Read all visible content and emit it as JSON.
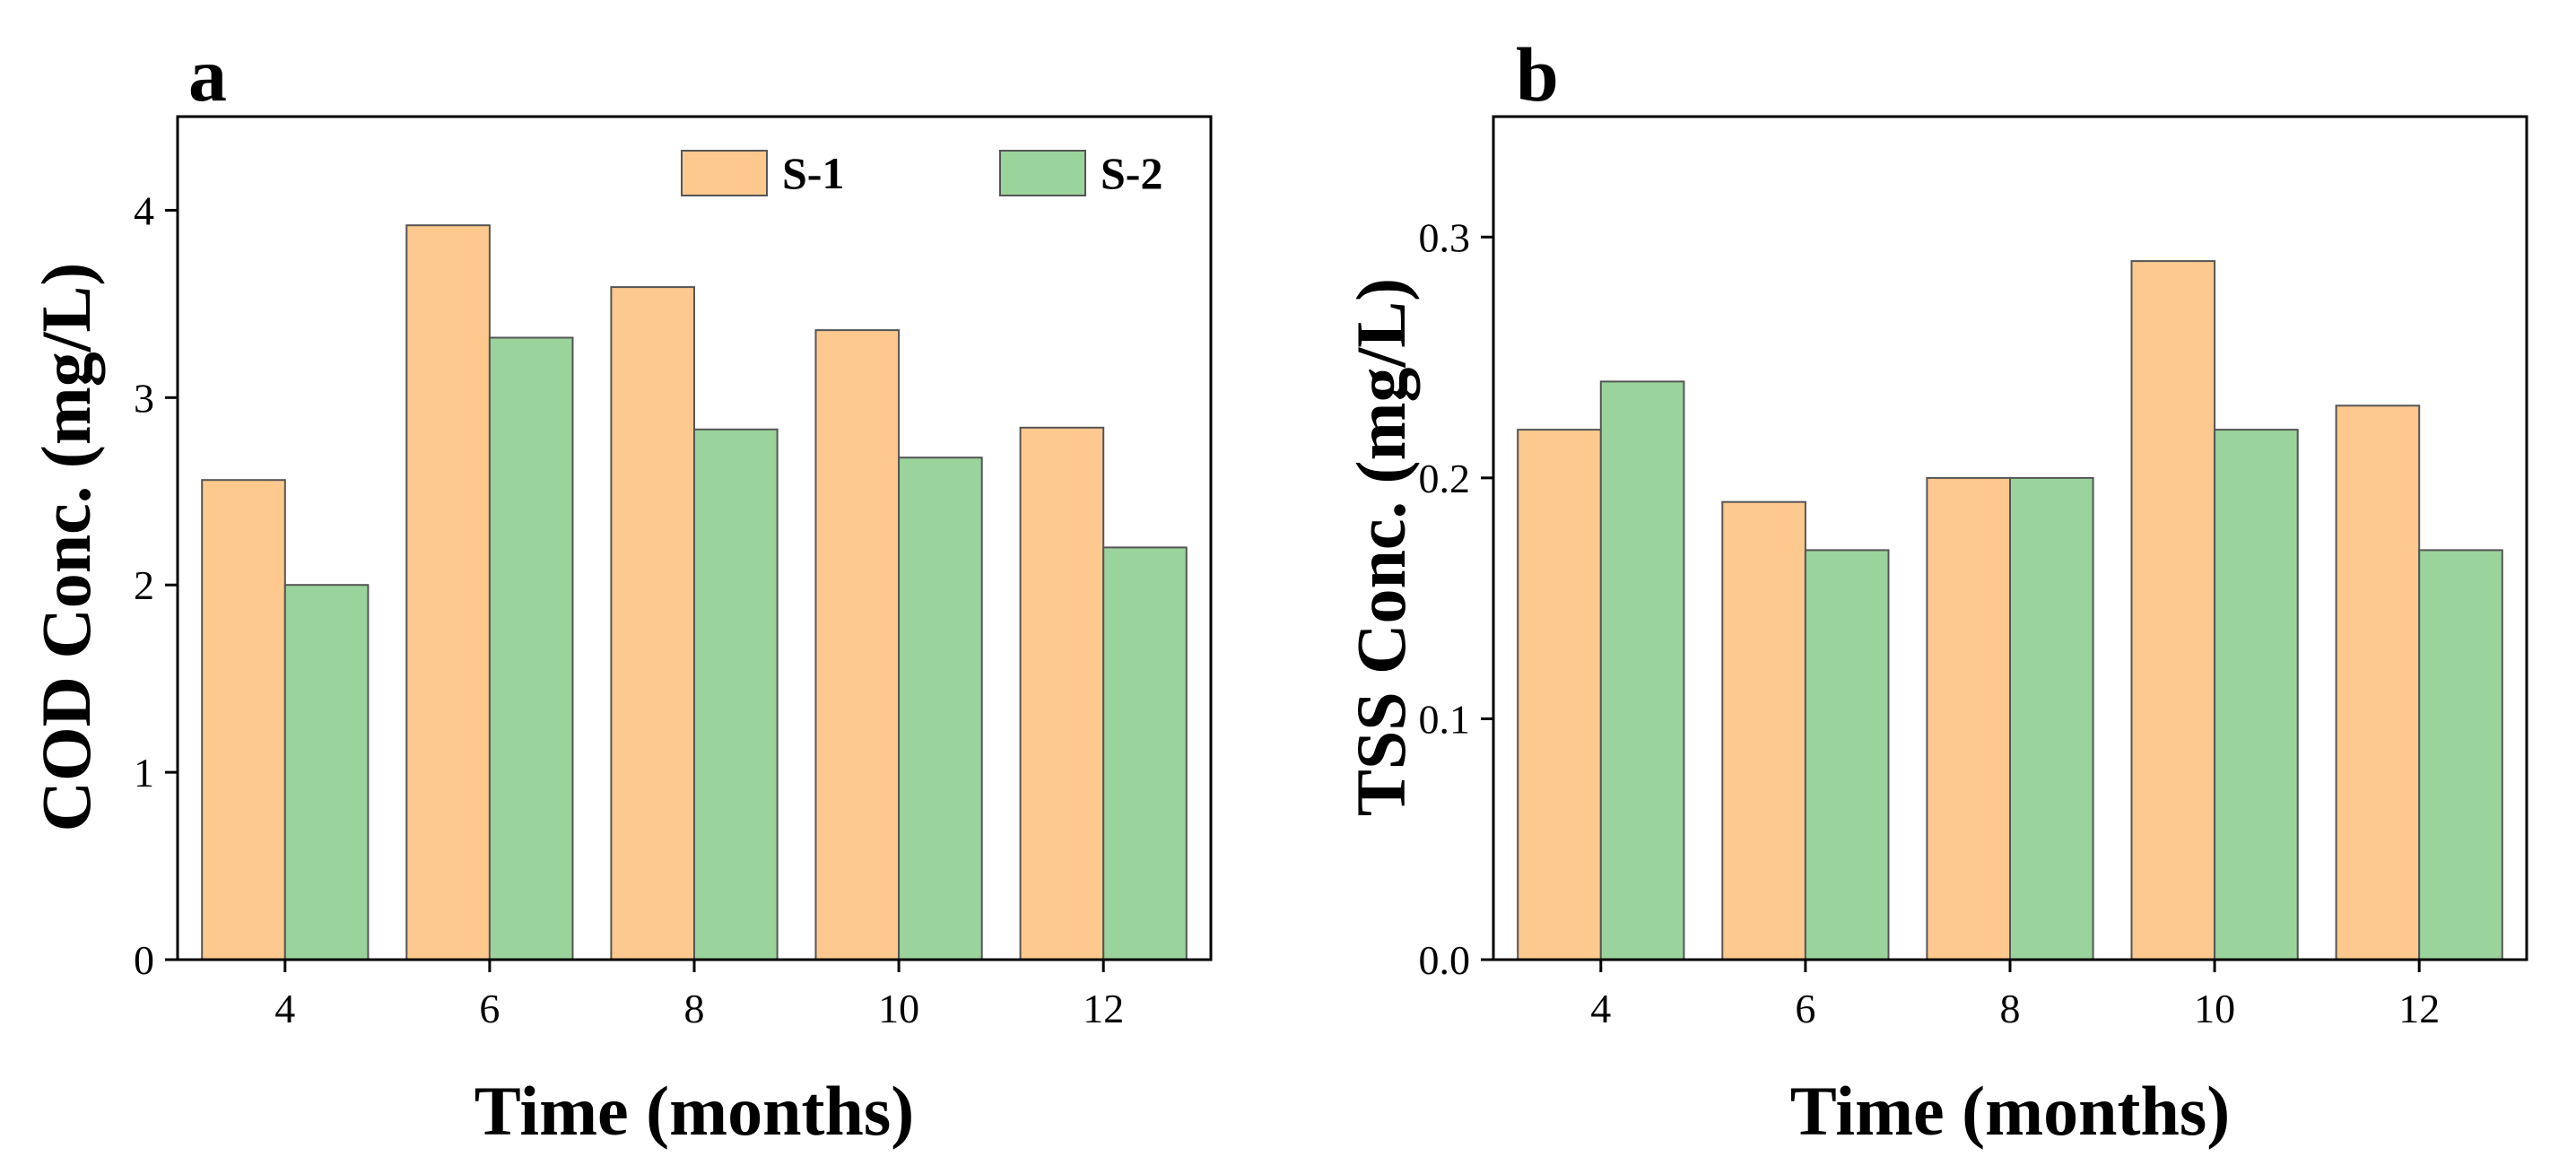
{
  "chart_data": [
    {
      "type": "bar",
      "panel_label": "a",
      "xlabel": "Time (months)",
      "ylabel": "COD Conc. (mg/L)",
      "categories": [
        "4",
        "6",
        "8",
        "10",
        "12"
      ],
      "series": [
        {
          "name": "S-1",
          "values": [
            2.56,
            3.92,
            3.59,
            3.36,
            2.84
          ]
        },
        {
          "name": "S-2",
          "values": [
            2.0,
            3.32,
            2.83,
            2.68,
            2.2
          ]
        }
      ],
      "ylim": [
        0,
        4.5
      ],
      "yticks": [
        0,
        1,
        2,
        3,
        4
      ],
      "ytick_labels": [
        "0",
        "1",
        "2",
        "3",
        "4"
      ],
      "legend": "top-right",
      "grid": false
    },
    {
      "type": "bar",
      "panel_label": "b",
      "xlabel": "Time (months)",
      "ylabel": "TSS Conc. (mg/L)",
      "categories": [
        "4",
        "6",
        "8",
        "10",
        "12"
      ],
      "series": [
        {
          "name": "S-1",
          "values": [
            0.22,
            0.19,
            0.2,
            0.29,
            0.23
          ]
        },
        {
          "name": "S-2",
          "values": [
            0.24,
            0.17,
            0.2,
            0.22,
            0.17
          ]
        }
      ],
      "ylim": [
        0,
        0.35
      ],
      "yticks": [
        0,
        0.1,
        0.2,
        0.3
      ],
      "ytick_labels": [
        "0.0",
        "0.1",
        "0.2",
        "0.3"
      ],
      "legend": "none",
      "grid": false
    }
  ],
  "colors": {
    "S-1": "#fdc98e",
    "S-2": "#9ad49c",
    "bar_edge": "#555555",
    "axis": "#000000"
  }
}
